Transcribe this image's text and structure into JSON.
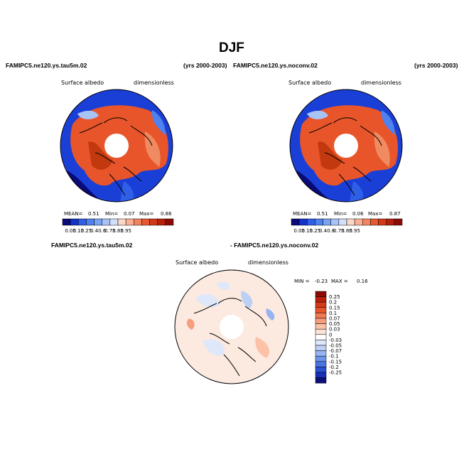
{
  "page_title": "DJF",
  "colors": {
    "ocean_blue": "#1a3fd6",
    "land_red": "#e8552a",
    "pole_white": "#ffffff",
    "diff_bg": "#fce9df"
  },
  "panels": [
    {
      "run_name": "FAMIPC5.ne120.ys.tau5m.02",
      "years": "(yrs 2000-2003)",
      "variable": "Surface albedo",
      "units": "dimensionless",
      "stats": {
        "mean_label": "MEAN=",
        "mean": "0.51",
        "min_label": "Min=",
        "min": "0.07",
        "max_label": "Max=",
        "max": "0.86"
      }
    },
    {
      "run_name": "FAMIPC5.ne120.ys.noconv.02",
      "years": "(yrs 2000-2003)",
      "variable": "Surface albedo",
      "units": "dimensionless",
      "stats": {
        "mean_label": "MEAN=",
        "mean": "0.51",
        "min_label": "Min=",
        "min": "0.06",
        "max_label": "Max=",
        "max": "0.87"
      }
    }
  ],
  "colorbar": {
    "colors": [
      "#0a0a78",
      "#1532c8",
      "#2f5fe6",
      "#4f82ee",
      "#7aa3f2",
      "#a8c3f6",
      "#d2e0fa",
      "#fbd7c5",
      "#f8b196",
      "#f1855f",
      "#e55a32",
      "#d23a17",
      "#b5200b",
      "#8c0c05"
    ],
    "labels": [
      "0.05",
      "0.15",
      "0.25",
      "0.4",
      "0.6",
      "0.75",
      "0.85",
      "0.95"
    ]
  },
  "diff_panel": {
    "run_a": "FAMIPC5.ne120.ys.tau5m.02",
    "run_b": "- FAMIPC5.ne120.ys.noconv.02",
    "variable": "Surface albedo",
    "units": "dimensionless",
    "min_label": "MIN =",
    "min": "-0.23",
    "max_label": "MAX =",
    "max": "0.16"
  },
  "diff_colorbar": {
    "colors": [
      "#8a0a05",
      "#b8200c",
      "#d63a18",
      "#e8552a",
      "#f27a52",
      "#f79e7c",
      "#fbc2a8",
      "#fde3d6",
      "#ffffff",
      "#dfe8fb",
      "#bcd0f6",
      "#96b4f1",
      "#6f95eb",
      "#4a74e4",
      "#2a52d6",
      "#1631b6",
      "#0a0f7a"
    ],
    "labels": [
      "0.25",
      "0.2",
      "0.15",
      "0.1",
      "0.07",
      "0.05",
      "0.03",
      "0",
      "-0.03",
      "-0.05",
      "-0.07",
      "-0.1",
      "-0.15",
      "-0.2",
      "-0.25"
    ]
  }
}
